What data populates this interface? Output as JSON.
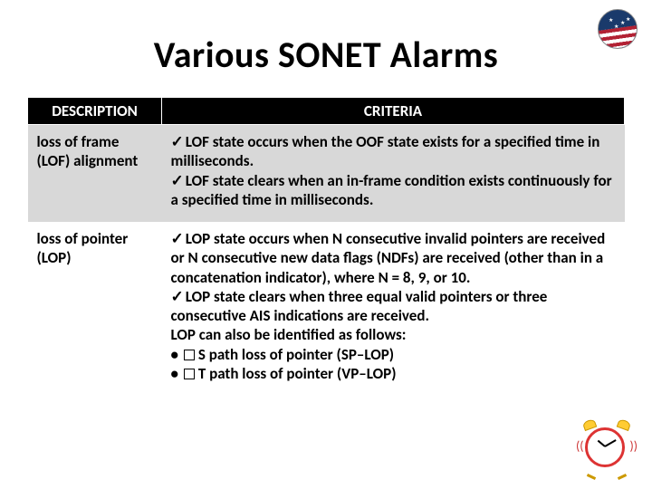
{
  "title": "Various SONET Alarms",
  "table": {
    "columns": [
      "DESCRIPTION",
      "CRITERIA"
    ],
    "header_bg": "#000000",
    "header_fg": "#ffffff",
    "row_colors": [
      "#d8d8d8",
      "#ffffff"
    ],
    "font_size": 17,
    "rows": [
      {
        "description": "loss of frame (LOF) alignment",
        "criteria_html": "<span class='check'></span>LOF state occurs when the OOF state exists for a specified time in milliseconds.<br><span class='check'></span>LOF state clears when an in-frame condition exists continuously for a specified time in milliseconds."
      },
      {
        "description": "loss of pointer (LOP)",
        "criteria_html": "<span class='check'></span>LOP state occurs when N consecutive invalid pointers are received or N consecutive new data flags (NDFs) are received (other than in a concatenation indicator), where N = 8, 9, or 10.<br><span class='check'></span>LOP state clears when three equal valid pointers or three consecutive AIS indications are received.<br>LOP can also be identified as follows:<br>• <span class='bullet-box'></span>S path loss of pointer (SP–LOP)<br>• <span class='bullet-box'></span>T path loss of pointer (VP–LOP)"
      }
    ]
  },
  "icons": {
    "logo": "flag-circle-icon",
    "clock": "alarm-clock-icon"
  },
  "colors": {
    "title": "#000000",
    "background": "#ffffff",
    "logo_bg": "#1a3a6b",
    "stripe_red": "#b22234",
    "clock_ring": "#d33333",
    "clock_bell": "#ffcc33"
  }
}
